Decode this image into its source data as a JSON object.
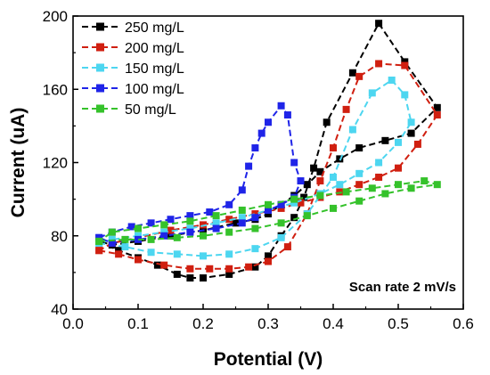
{
  "chart_data": {
    "type": "line",
    "title": "",
    "xlabel": "Potential (V)",
    "ylabel": "Current (uA)",
    "xlim": [
      0.0,
      0.6
    ],
    "ylim": [
      40,
      200
    ],
    "xticks": [
      0.0,
      0.1,
      0.2,
      0.3,
      0.4,
      0.5,
      0.6
    ],
    "xtick_labels": [
      "0.0",
      "0.1",
      "0.2",
      "0.3",
      "0.4",
      "0.5",
      "0.6"
    ],
    "yticks": [
      40,
      80,
      120,
      160,
      200
    ],
    "ytick_labels": [
      "40",
      "80",
      "120",
      "160",
      "200"
    ],
    "grid": false,
    "legend_position": "top-left",
    "annotation": "Scan rate 2 mV/s",
    "series": [
      {
        "name": "250 mg/L",
        "color": "#000000",
        "x": [
          0.04,
          0.07,
          0.1,
          0.13,
          0.16,
          0.18,
          0.2,
          0.24,
          0.28,
          0.3,
          0.32,
          0.34,
          0.355,
          0.37,
          0.39,
          0.43,
          0.47,
          0.51,
          0.56,
          0.52,
          0.48,
          0.44,
          0.41,
          0.38,
          0.36,
          0.34,
          0.32,
          0.3,
          0.28,
          0.25,
          0.2,
          0.15,
          0.1,
          0.06,
          0.04
        ],
        "y": [
          77,
          72,
          68,
          64,
          59,
          57,
          57,
          59,
          63,
          69,
          80,
          90,
          101,
          117,
          142,
          169,
          196,
          175,
          150,
          136,
          132,
          128,
          122,
          115,
          108,
          102,
          97,
          92,
          89,
          87,
          83,
          80,
          77,
          75,
          77
        ]
      },
      {
        "name": "200 mg/L",
        "color": "#d01f10",
        "x": [
          0.04,
          0.07,
          0.1,
          0.14,
          0.18,
          0.21,
          0.24,
          0.27,
          0.3,
          0.33,
          0.36,
          0.38,
          0.4,
          0.42,
          0.44,
          0.47,
          0.51,
          0.56,
          0.53,
          0.5,
          0.47,
          0.44,
          0.41,
          0.38,
          0.35,
          0.32,
          0.28,
          0.24,
          0.2,
          0.15,
          0.1,
          0.06,
          0.04
        ],
        "y": [
          72,
          70,
          67,
          64,
          62,
          62,
          62,
          63,
          66,
          74,
          92,
          110,
          128,
          149,
          167,
          174,
          173,
          146,
          130,
          117,
          112,
          108,
          104,
          101,
          98,
          95,
          92,
          89,
          86,
          83,
          79,
          76,
          72
        ]
      },
      {
        "name": "150 mg/L",
        "color": "#4dd6f0",
        "x": [
          0.04,
          0.08,
          0.12,
          0.16,
          0.2,
          0.24,
          0.28,
          0.32,
          0.36,
          0.4,
          0.43,
          0.46,
          0.49,
          0.51,
          0.52,
          0.5,
          0.47,
          0.44,
          0.41,
          0.38,
          0.34,
          0.3,
          0.26,
          0.22,
          0.18,
          0.14,
          0.1,
          0.06,
          0.04
        ],
        "y": [
          76,
          74,
          71,
          70,
          69,
          70,
          73,
          79,
          92,
          112,
          138,
          158,
          165,
          157,
          142,
          131,
          120,
          114,
          108,
          103,
          98,
          94,
          90,
          87,
          84,
          82,
          80,
          78,
          76
        ]
      },
      {
        "name": "100 mg/L",
        "color": "#1f24e8",
        "x": [
          0.04,
          0.06,
          0.09,
          0.12,
          0.15,
          0.18,
          0.21,
          0.24,
          0.26,
          0.27,
          0.28,
          0.29,
          0.3,
          0.32,
          0.33,
          0.34,
          0.35,
          0.34,
          0.32,
          0.3,
          0.28,
          0.26,
          0.22,
          0.18,
          0.14,
          0.1,
          0.06,
          0.04
        ],
        "y": [
          79,
          82,
          85,
          87,
          89,
          91,
          93,
          97,
          105,
          118,
          128,
          136,
          142,
          151,
          146,
          120,
          110,
          101,
          97,
          94,
          90,
          87,
          84,
          82,
          80,
          78,
          76,
          79
        ]
      },
      {
        "name": "50 mg/L",
        "color": "#35c22b",
        "x": [
          0.04,
          0.08,
          0.12,
          0.16,
          0.2,
          0.24,
          0.28,
          0.32,
          0.36,
          0.4,
          0.44,
          0.48,
          0.52,
          0.56,
          0.54,
          0.5,
          0.46,
          0.42,
          0.38,
          0.34,
          0.3,
          0.26,
          0.22,
          0.18,
          0.14,
          0.1,
          0.06,
          0.04
        ],
        "y": [
          77,
          78,
          78,
          79,
          80,
          82,
          84,
          87,
          91,
          95,
          99,
          103,
          106,
          108,
          110,
          108,
          106,
          104,
          102,
          100,
          97,
          94,
          91,
          88,
          86,
          84,
          82,
          77
        ]
      }
    ]
  }
}
